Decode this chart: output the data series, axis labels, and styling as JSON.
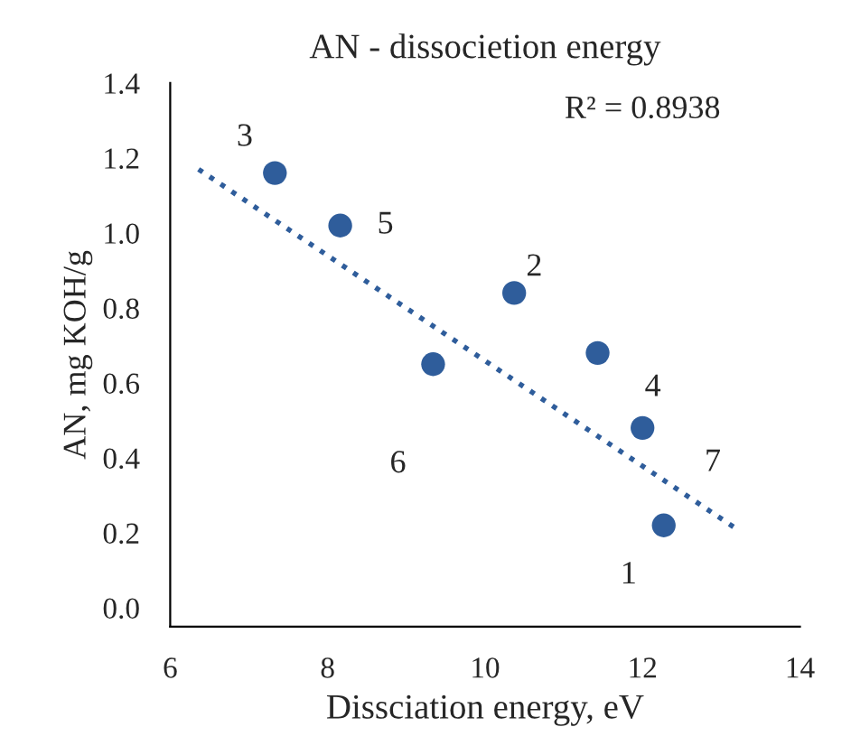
{
  "chart_data": {
    "type": "scatter",
    "title": "AN - dissocietion energy",
    "xlabel": "Dissciation energy, eV",
    "ylabel": "AN, mg KOH/g",
    "series": [
      {
        "color": "#2f5d9b",
        "marker": "circle",
        "x": [
          12.27,
          10.37,
          7.33,
          11.43,
          8.16,
          9.34,
          12.0
        ],
        "values": [
          0.22,
          0.84,
          1.16,
          0.68,
          1.02,
          0.65,
          0.48
        ]
      },
      {
        "type": "line",
        "color": "#2f5d9b",
        "line_style": "dotted",
        "marker": "none",
        "x": [
          6.36,
          13.2
        ],
        "values": [
          1.17,
          0.21
        ]
      }
    ],
    "annotations": [
      {
        "text": "1",
        "x": 12.27,
        "y": 0.22
      },
      {
        "text": "2",
        "x": 10.37,
        "y": 0.84
      },
      {
        "text": "3",
        "x": 7.33,
        "y": 1.16
      },
      {
        "text": "4",
        "x": 11.43,
        "y": 0.68
      },
      {
        "text": "5",
        "x": 8.16,
        "y": 1.02
      },
      {
        "text": "6",
        "x": 9.34,
        "y": 0.65
      },
      {
        "text": "7",
        "x": 12.0,
        "y": 0.48
      },
      "R² = 0.8938"
    ],
    "xlim": [
      6,
      14
    ],
    "xticks": [
      6,
      8,
      10,
      12,
      14
    ],
    "ylim": [
      -0.05,
      1.4
    ],
    "yticks": [
      {
        "value": 0,
        "label": "0.0"
      },
      {
        "value": 0.2,
        "label": "0.2"
      },
      {
        "value": 0.4,
        "label": "0.4"
      },
      {
        "value": 0.6,
        "label": "0.6"
      },
      {
        "value": 0.8,
        "label": "0.8"
      },
      {
        "value": 1.0,
        "label": "1.0"
      },
      {
        "value": 1.2,
        "label": "1.2"
      },
      {
        "value": 1.4,
        "label": "1.4"
      }
    ],
    "grid": false,
    "legend": false
  }
}
